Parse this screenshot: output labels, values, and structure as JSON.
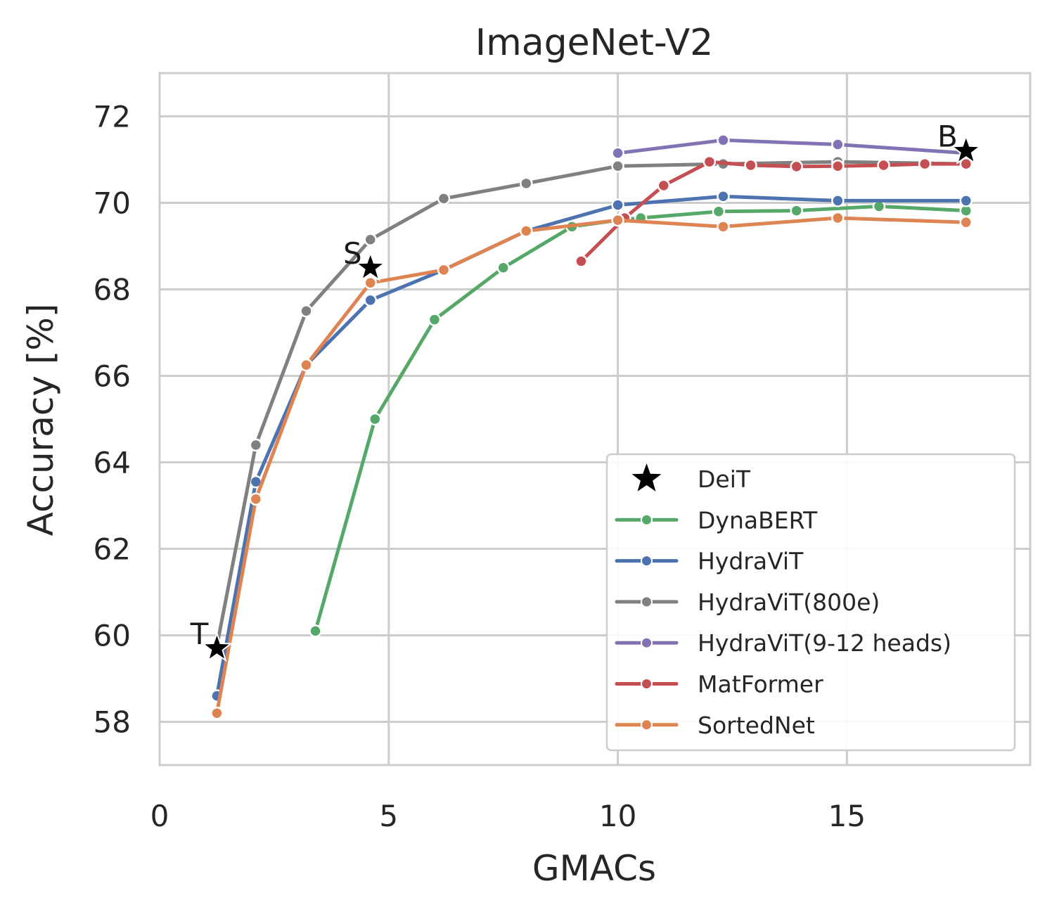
{
  "chart_data": {
    "type": "line",
    "title": "ImageNet-V2",
    "xlabel": "GMACs",
    "ylabel": "Accuracy [%]",
    "xlim": [
      0,
      19
    ],
    "ylim": [
      57,
      73
    ],
    "xticks": [
      0,
      5,
      10,
      15
    ],
    "yticks": [
      58,
      60,
      62,
      64,
      66,
      68,
      70,
      72
    ],
    "xtick_labels": [
      "0",
      "5",
      "10",
      "15"
    ],
    "ytick_labels": [
      "58",
      "60",
      "62",
      "64",
      "66",
      "68",
      "70",
      "72"
    ],
    "grid": true,
    "legend_position": "lower-right",
    "colors": {
      "DeiT": "#000000",
      "DynaBERT": "#55a868",
      "HydraViT": "#4c72b0",
      "HydraViT(800e)": "#808080",
      "HydraViT(9-12 heads)": "#8172b3",
      "MatFormer": "#c44e52",
      "SortedNet": "#dd8452"
    },
    "deit": {
      "name": "DeiT",
      "points": [
        {
          "label": "T",
          "x": 1.25,
          "y": 59.7
        },
        {
          "label": "S",
          "x": 4.6,
          "y": 68.5
        },
        {
          "label": "B",
          "x": 17.6,
          "y": 71.2
        }
      ]
    },
    "series": [
      {
        "name": "DynaBERT",
        "x": [
          3.4,
          4.7,
          6.0,
          7.5,
          9.0,
          10.0,
          10.5,
          12.2,
          13.9,
          15.7,
          17.6
        ],
        "y": [
          60.1,
          65.0,
          67.3,
          68.5,
          69.45,
          69.6,
          69.65,
          69.8,
          69.82,
          69.92,
          69.82
        ]
      },
      {
        "name": "HydraViT",
        "x": [
          1.25,
          2.1,
          3.2,
          4.6,
          6.2,
          8.0,
          10.0,
          12.3,
          14.8,
          17.6
        ],
        "y": [
          58.6,
          63.55,
          66.25,
          67.75,
          68.45,
          69.35,
          69.95,
          70.15,
          70.05,
          70.05
        ]
      },
      {
        "name": "HydraViT(800e)",
        "x": [
          1.25,
          2.1,
          3.2,
          4.6,
          6.2,
          8.0,
          10.0,
          12.3,
          14.8,
          17.6
        ],
        "y": [
          59.75,
          64.4,
          67.5,
          69.15,
          70.1,
          70.45,
          70.85,
          70.9,
          70.95,
          70.9
        ]
      },
      {
        "name": "HydraViT(9-12 heads)",
        "x": [
          10.0,
          12.3,
          14.8,
          17.6
        ],
        "y": [
          71.15,
          71.45,
          71.35,
          71.15
        ]
      },
      {
        "name": "MatFormer",
        "x": [
          9.2,
          10.15,
          11.0,
          12.0,
          12.9,
          13.9,
          14.8,
          15.8,
          16.7,
          17.6
        ],
        "y": [
          68.65,
          69.65,
          70.4,
          70.95,
          70.87,
          70.84,
          70.85,
          70.87,
          70.9,
          70.9
        ]
      },
      {
        "name": "SortedNet",
        "x": [
          1.25,
          2.1,
          3.2,
          4.6,
          6.2,
          8.0,
          10.0,
          12.3,
          14.8,
          17.6
        ],
        "y": [
          58.2,
          63.15,
          66.25,
          68.15,
          68.45,
          69.35,
          69.6,
          69.45,
          69.65,
          69.55
        ]
      }
    ]
  }
}
